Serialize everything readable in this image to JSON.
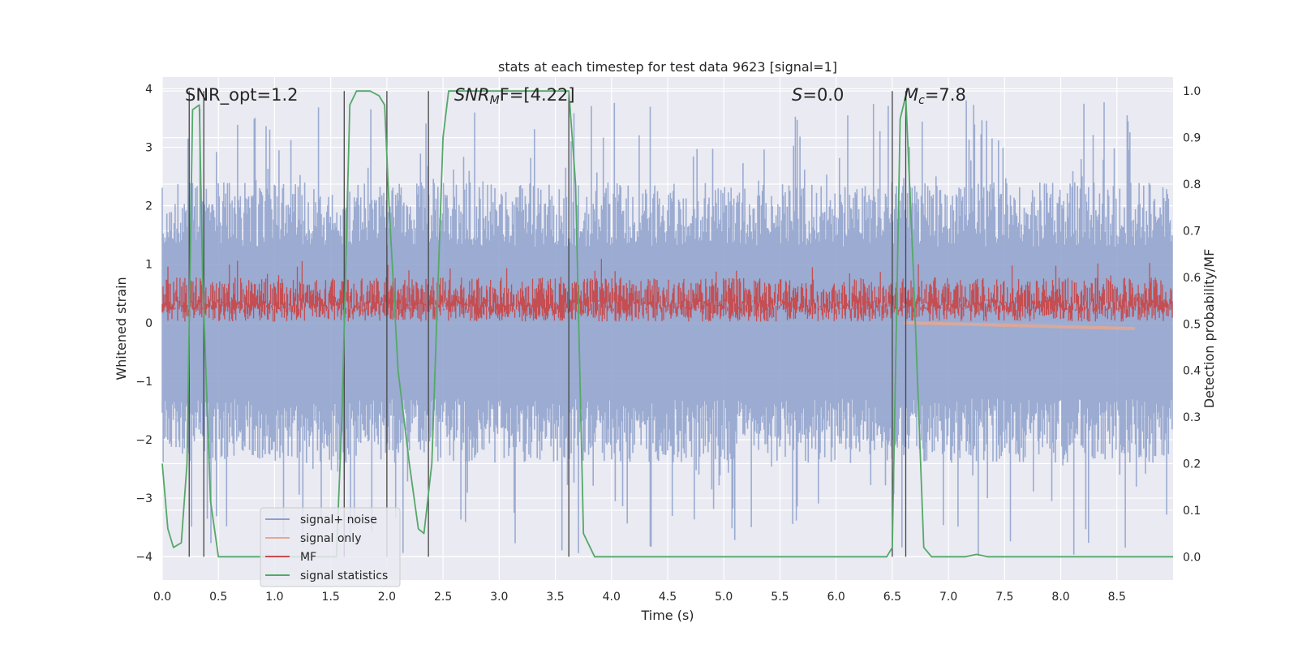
{
  "chart_data": {
    "type": "line",
    "title": "stats at each timestep for test data 9623 [signal=1]",
    "xlabel": "Time (s)",
    "ylabel_left": "Whitened strain",
    "ylabel_right": "Detection probability/MF",
    "xlim": [
      0.0,
      9.0
    ],
    "ylim_left": [
      -4.4,
      4.2
    ],
    "ylim_right": [
      -0.05,
      1.03
    ],
    "x_ticks": [
      "0.0",
      "0.5",
      "1.0",
      "1.5",
      "2.0",
      "2.5",
      "3.0",
      "3.5",
      "4.0",
      "4.5",
      "5.0",
      "5.5",
      "6.0",
      "6.5",
      "7.0",
      "7.5",
      "8.0",
      "8.5"
    ],
    "y_ticks_left": [
      "4",
      "3",
      "2",
      "1",
      "0",
      "−1",
      "−2",
      "−3",
      "−4"
    ],
    "y_ticks_right": [
      "1.0",
      "0.9",
      "0.8",
      "0.7",
      "0.6",
      "0.5",
      "0.4",
      "0.3",
      "0.2",
      "0.1",
      "0.0"
    ],
    "grid": true,
    "annotations": {
      "snr_opt": "SNR_opt=1.2",
      "snr_mf_main": "SNR",
      "snr_mf_sub": "M",
      "snr_mf_rest": "F=[4.22]",
      "s_main": "S",
      "s_rest": "=0.0",
      "mc_main": "M",
      "mc_sub": "c",
      "mc_rest": "=7.8"
    },
    "vertical_lines_x": [
      0.24,
      0.37,
      1.62,
      2.0,
      2.37,
      3.62,
      6.5,
      6.62
    ],
    "series": [
      {
        "name": "signal+ noise",
        "color": "#8da0cb",
        "description": "whitened strain noise, amplitude approx ±2.3 with spikes to ±4"
      },
      {
        "name": "signal only",
        "color": "#e8a88f",
        "points": [
          [
            6.6,
            0.0
          ],
          [
            8.66,
            -0.1
          ]
        ]
      },
      {
        "name": "MF",
        "color": "#c44e52",
        "values_right_axis_range": [
          0.5,
          0.6
        ]
      },
      {
        "name": "signal statistics",
        "color": "#55a868",
        "points": [
          [
            0.0,
            0.2
          ],
          [
            0.05,
            0.06
          ],
          [
            0.1,
            0.02
          ],
          [
            0.17,
            0.03
          ],
          [
            0.22,
            0.2
          ],
          [
            0.27,
            0.96
          ],
          [
            0.33,
            0.97
          ],
          [
            0.36,
            0.6
          ],
          [
            0.43,
            0.12
          ],
          [
            0.5,
            0.0
          ],
          [
            1.55,
            0.0
          ],
          [
            1.6,
            0.3
          ],
          [
            1.67,
            0.97
          ],
          [
            1.73,
            1.0
          ],
          [
            1.85,
            1.0
          ],
          [
            1.93,
            0.99
          ],
          [
            1.98,
            0.97
          ],
          [
            2.02,
            0.75
          ],
          [
            2.1,
            0.4
          ],
          [
            2.2,
            0.2
          ],
          [
            2.28,
            0.06
          ],
          [
            2.33,
            0.05
          ],
          [
            2.4,
            0.2
          ],
          [
            2.5,
            0.9
          ],
          [
            2.55,
            1.0
          ],
          [
            3.62,
            1.0
          ],
          [
            3.68,
            0.8
          ],
          [
            3.75,
            0.05
          ],
          [
            3.85,
            0.0
          ],
          [
            6.45,
            0.0
          ],
          [
            6.5,
            0.02
          ],
          [
            6.57,
            0.94
          ],
          [
            6.62,
            0.99
          ],
          [
            6.69,
            0.6
          ],
          [
            6.78,
            0.02
          ],
          [
            6.85,
            0.0
          ],
          [
            7.15,
            0.0
          ],
          [
            7.25,
            0.005
          ],
          [
            7.35,
            0.0
          ],
          [
            9.0,
            0.0
          ]
        ]
      }
    ],
    "legend": {
      "placement": "lower-left",
      "entries": [
        "signal+ noise",
        "signal only",
        "MF",
        "signal statistics"
      ]
    }
  }
}
